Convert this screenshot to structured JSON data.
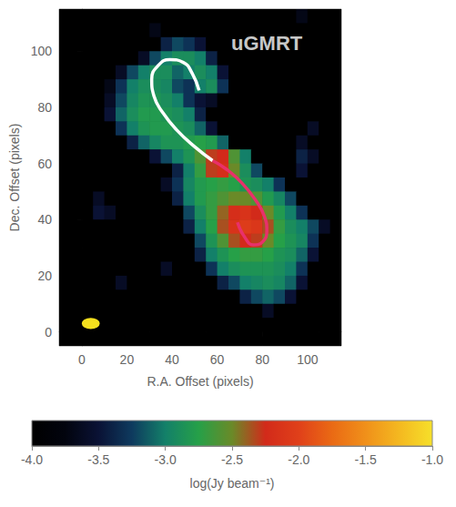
{
  "chart_data": {
    "type": "heatmap",
    "x_label": "R.A. Offset (pixels)",
    "y_label": "Dec. Offset (pixels)",
    "xlim": [
      -10,
      115
    ],
    "ylim": [
      -5,
      115
    ],
    "xticks": [
      0,
      20,
      40,
      60,
      80,
      100
    ],
    "yticks": [
      0,
      20,
      40,
      60,
      80,
      100
    ],
    "annotations": [
      {
        "text": "uGMRT",
        "x": 82,
        "y": 103
      }
    ],
    "cells": {
      "x": [
        -7.5,
        -2.5,
        2.5,
        7.5,
        12.5,
        17.5,
        22.5,
        27.5,
        32.5,
        37.5,
        42.5,
        47.5,
        52.5,
        57.5,
        62.5,
        67.5,
        72.5,
        77.5,
        82.5,
        87.5,
        92.5,
        97.5,
        102.5,
        107.5,
        112.5
      ],
      "y": [
        112.5,
        107.5,
        102.5,
        97.5,
        92.5,
        87.5,
        82.5,
        77.5,
        72.5,
        67.5,
        62.5,
        57.5,
        52.5,
        47.5,
        42.5,
        37.5,
        32.5,
        27.5,
        22.5,
        17.5,
        12.5,
        7.5,
        2.5,
        -2.5
      ],
      "values": [
        [
          -4,
          -4,
          -4,
          -4,
          -4,
          -4,
          -4,
          -4,
          -4,
          -4,
          -4,
          -4,
          -4,
          -4,
          -4,
          -4,
          -4,
          -4,
          -4,
          -4,
          -4,
          -3.7,
          -4,
          -4,
          -4
        ],
        [
          -4,
          -4,
          -4,
          -4,
          -4,
          -4,
          -4,
          -4,
          -3.7,
          -4,
          -4,
          -4,
          -4,
          -4,
          -4,
          -4,
          -4,
          -4,
          -4,
          -4,
          -4,
          -4,
          -4,
          -4,
          -4
        ],
        [
          -4,
          -4,
          -4,
          -4,
          -4,
          -4,
          -4,
          -4,
          -4,
          -3.4,
          -3.2,
          -3.3,
          -3.5,
          -4,
          -4,
          -4,
          -4,
          -4,
          -4,
          -4,
          -4,
          -4,
          -4,
          -4,
          -4
        ],
        [
          -4,
          -4,
          -4,
          -4,
          -4,
          -4,
          -4,
          -3.6,
          -3.2,
          -3,
          -2.9,
          -2.9,
          -3,
          -3.4,
          -4,
          -4,
          -4,
          -4,
          -4,
          -4,
          -4,
          -4,
          -4,
          -4,
          -4
        ],
        [
          -4,
          -4,
          -4,
          -4,
          -4,
          -3.6,
          -3.2,
          -3,
          -2.9,
          -2.9,
          -3.1,
          -3,
          -2.9,
          -3,
          -3.5,
          -4,
          -4,
          -4,
          -4,
          -4,
          -4,
          -4,
          -4,
          -4,
          -4
        ],
        [
          -4,
          -4,
          -4,
          -4,
          -3.7,
          -3.3,
          -3,
          -2.9,
          -2.9,
          -2.95,
          -3.2,
          -3.3,
          -3,
          -2.9,
          -3.3,
          -4,
          -4,
          -4,
          -4,
          -4,
          -4,
          -4,
          -4,
          -4,
          -4
        ],
        [
          -4,
          -4,
          -4,
          -4,
          -3.6,
          -3.2,
          -2.95,
          -2.85,
          -2.85,
          -2.9,
          -3,
          -3.3,
          -3.5,
          -3.6,
          -4,
          -4,
          -4,
          -4,
          -4,
          -4,
          -4,
          -4,
          -4,
          -4,
          -4
        ],
        [
          -4,
          -4,
          -4,
          -4,
          -3.5,
          -3.1,
          -2.9,
          -2.8,
          -2.8,
          -2.85,
          -2.9,
          -3,
          -3.4,
          -4,
          -4,
          -4,
          -4,
          -4,
          -4,
          -4,
          -4,
          -4,
          -4,
          -4,
          -4
        ],
        [
          -4,
          -4,
          -4,
          -4,
          -4,
          -3.3,
          -3,
          -2.85,
          -2.8,
          -2.8,
          -2.85,
          -2.9,
          -3.1,
          -3.5,
          -4,
          -4,
          -4,
          -4,
          -4,
          -4,
          -4,
          -4,
          -3.6,
          -4,
          -4
        ],
        [
          -4,
          -4,
          -4,
          -4,
          -4,
          -4,
          -3.4,
          -3.1,
          -2.95,
          -2.85,
          -2.85,
          -2.8,
          -2.75,
          -2.8,
          -3.1,
          -4,
          -4,
          -4,
          -4,
          -4,
          -4,
          -3.6,
          -4,
          -4,
          -4
        ],
        [
          -4,
          -4,
          -4,
          -4,
          -4,
          -4,
          -4,
          -4,
          -3.5,
          -3.2,
          -3,
          -2.85,
          -2.6,
          -2.3,
          -2.25,
          -2.6,
          -3,
          -4,
          -4,
          -4,
          -4,
          -3.4,
          -3.6,
          -4,
          -4
        ],
        [
          -4,
          -4,
          -4,
          -4,
          -4,
          -4,
          -4,
          -4,
          -4,
          -4,
          -3.4,
          -3,
          -2.7,
          -2.3,
          -2.2,
          -2.5,
          -2.9,
          -3.2,
          -4,
          -4,
          -4,
          -3.5,
          -4,
          -4,
          -4
        ],
        [
          -4,
          -4,
          -4,
          -4,
          -4,
          -4,
          -4,
          -4,
          -4,
          -3.6,
          -3.3,
          -2.95,
          -2.8,
          -2.75,
          -2.7,
          -2.75,
          -2.85,
          -2.9,
          -3,
          -3.3,
          -4,
          -4,
          -4,
          -4,
          -4
        ],
        [
          -4,
          -4,
          -4,
          -3.6,
          -4,
          -4,
          -4,
          -4,
          -4,
          -4,
          -3.4,
          -3,
          -2.8,
          -2.7,
          -2.6,
          -2.5,
          -2.5,
          -2.6,
          -2.8,
          -2.95,
          -3.2,
          -4,
          -4,
          -4,
          -4
        ],
        [
          -4,
          -4,
          -4,
          -3.5,
          -3.6,
          -4,
          -4,
          -4,
          -4,
          -4,
          -4,
          -3.2,
          -2.9,
          -2.7,
          -2.4,
          -2.2,
          -2.15,
          -2.25,
          -2.5,
          -2.8,
          -3,
          -3.3,
          -4,
          -4,
          -4
        ],
        [
          -4,
          -4,
          -4,
          -4,
          -4,
          -4,
          -4,
          -4,
          -4,
          -4,
          -4,
          -3.4,
          -3,
          -2.75,
          -2.35,
          -2.15,
          -2.05,
          -2.1,
          -2.35,
          -2.7,
          -2.9,
          -3,
          -3.2,
          -3.6,
          -4
        ],
        [
          -4,
          -4,
          -4,
          -4,
          -4,
          -4,
          -4,
          -4,
          -4,
          -4,
          -4,
          -4,
          -3.2,
          -2.85,
          -2.6,
          -2.35,
          -2.25,
          -2.3,
          -2.5,
          -2.75,
          -2.85,
          -2.95,
          -3.3,
          -4,
          -4
        ],
        [
          -4,
          -4,
          -4,
          -4,
          -4,
          -4,
          -4,
          -4,
          -4,
          -4,
          -4,
          -4,
          -3.4,
          -3,
          -2.85,
          -2.75,
          -2.7,
          -2.7,
          -2.75,
          -2.85,
          -2.9,
          -3.1,
          -3.5,
          -4,
          -4
        ],
        [
          -4,
          -4,
          -4,
          -4,
          -4,
          -4,
          -4,
          -4,
          -4,
          -3.6,
          -4,
          -4,
          -4,
          -3.3,
          -3,
          -2.9,
          -2.85,
          -2.85,
          -2.85,
          -2.9,
          -3,
          -3.3,
          -4,
          -4,
          -4
        ],
        [
          -4,
          -4,
          -4,
          -4,
          -4,
          -3.6,
          -4,
          -4,
          -4,
          -4,
          -4,
          -4,
          -4,
          -4,
          -3.4,
          -3.2,
          -3,
          -2.95,
          -2.9,
          -2.95,
          -3.1,
          -3.5,
          -4,
          -4,
          -4
        ],
        [
          -4,
          -4,
          -4,
          -4,
          -4,
          -4,
          -4,
          -4,
          -4,
          -4,
          -4,
          -4,
          -4,
          -4,
          -4,
          -4,
          -3.4,
          -3.2,
          -3.1,
          -3.2,
          -3.5,
          -4,
          -4,
          -4,
          -4
        ],
        [
          -4,
          -4,
          -4,
          -4,
          -4,
          -4,
          -4,
          -4,
          -4,
          -4,
          -4,
          -4,
          -4,
          -4,
          -4,
          -4,
          -4,
          -4,
          -3.6,
          -4,
          -4,
          -4,
          -4,
          -4,
          -4
        ],
        [
          -4,
          -4,
          -4,
          -4,
          -4,
          -4,
          -4,
          -4,
          -4,
          -4,
          -4,
          -4,
          -4,
          -4,
          -4,
          -4,
          -4,
          -4,
          -4,
          -4,
          -4,
          -4,
          -4,
          -4,
          -4
        ],
        [
          -4,
          -4,
          -4,
          -4,
          -4,
          -4,
          -4,
          -4,
          -4,
          -4,
          -4,
          -4,
          -4,
          -4,
          -4,
          -4,
          -4,
          -4,
          -4,
          -4,
          -4,
          -4,
          -4,
          -4,
          -4
        ]
      ]
    },
    "colorbar": {
      "label": "log(Jy beam⁻¹)",
      "range": [
        -4,
        -1
      ],
      "ticks": [
        {
          "value": -4,
          "label": "-4.0"
        },
        -3.5,
        {
          "value": -3,
          "label": "-3.0"
        },
        -2.5,
        {
          "value": -2,
          "label": "-2.0"
        },
        -1.5,
        {
          "value": -1,
          "label": "-1.0"
        }
      ]
    },
    "curves": [
      {
        "color": "#ffffff",
        "x": [
          58,
          50,
          42,
          36,
          32,
          31,
          34,
          39,
          45,
          49,
          52
        ],
        "y": [
          61,
          66,
          72,
          78,
          84,
          90,
          95,
          97,
          96,
          92,
          86
        ]
      },
      {
        "color": "#e8306a",
        "x": [
          58,
          64,
          71,
          77,
          81,
          82,
          80,
          76,
          72,
          69
        ],
        "y": [
          61,
          58,
          53,
          47,
          41,
          36,
          32,
          31,
          34,
          39
        ]
      }
    ],
    "beam": {
      "x": 4,
      "y": 3,
      "width": 8,
      "height": 4,
      "color": "#f5e01e"
    }
  }
}
